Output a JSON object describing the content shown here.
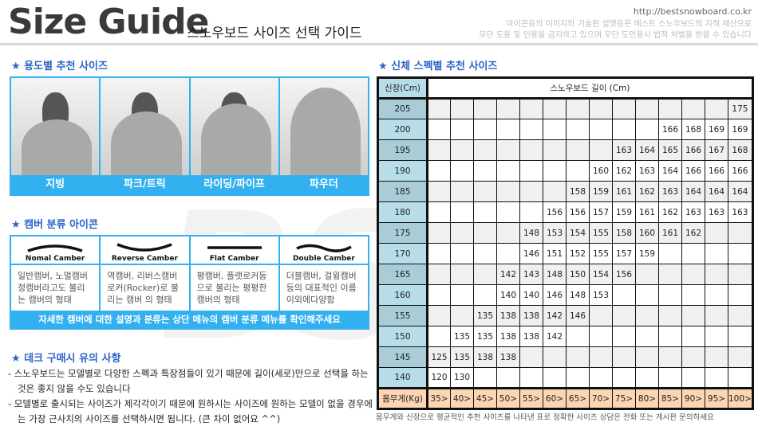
{
  "header": {
    "title": "Size Guide",
    "subtitle": "스노우보드 사이즈 선택 가이드",
    "url": "http://bestsnowboard.co.kr",
    "notice_line1": "아이콘등의 이미지와 기술된 설명등은 베스트 스노우보드의 지적 재산으로",
    "notice_line2": "무단 도용 및 인용을 금지하고 있으며 무단 도인용시 법적 처벌을 받을 수 있습니다"
  },
  "colors": {
    "accent": "#33b0ef",
    "heading": "#2a63c8",
    "height_col": "#b7dde8",
    "weight_row": "#fcd5b4"
  },
  "usage": {
    "heading": "★ 용도별 추천 사이즈",
    "items": [
      {
        "label": "지빙"
      },
      {
        "label": "파크/트릭"
      },
      {
        "label": "라이딩/파이프"
      },
      {
        "label": "파우더"
      }
    ]
  },
  "camber": {
    "heading": "★ 캠버 분류 아이콘",
    "items": [
      {
        "name": "Nomal Camber",
        "desc": "일반캠버, 노멀캠버 정캠버라고도 불리는 캠버의 형태"
      },
      {
        "name": "Reverse Camber",
        "desc": "역캠버, 리버스캠버 로커(Rocker)로 불리는 캠버 의 형태"
      },
      {
        "name": "Flat Camber",
        "desc": "평캠버, 플랫로커등 으로 불리는 평평한 캠버의 형태"
      },
      {
        "name": "Double Camber",
        "desc": "더블캠버, 걸윙캠버 등의 대표적인 이름 이외에다양함"
      }
    ],
    "note": "자세한 캠버에 대한 설명과 분류는 상단 메뉴의 캠버 분류 메뉴를 확인해주세요"
  },
  "deck": {
    "heading": "★ 데크 구매시 유의 사항",
    "notes": [
      "- 스노우보드는 모델별로 다양한 스펙과 특장점들이 있기 때문에 길이(세로)만으로 선택을 하는것은 좋지 않을 수도 있습니다",
      "- 모델별로 출시되는 사이즈가 제각각이기 때문에 원하시는 사이즈에 원하는 모델이 없을 경우에는 가장 근사치의 사이즈를 선택하시면 됩니다. (큰 차이 없어요 ^^)"
    ]
  },
  "size_table": {
    "heading": "★ 신체 스펙별 추천 사이즈",
    "height_header": "신장(Cm)",
    "length_header": "스노우보드 길이 (Cm)",
    "weight_header": "몸무게(Kg)",
    "weights": [
      "35>",
      "40>",
      "45>",
      "50>",
      "55>",
      "60>",
      "65>",
      "70>",
      "75>",
      "80>",
      "85>",
      "90>",
      "95>",
      "100>"
    ],
    "rows": [
      {
        "height": "205",
        "values": [
          "",
          "",
          "",
          "",
          "",
          "",
          "",
          "",
          "",
          "",
          "",
          "",
          "",
          "175"
        ]
      },
      {
        "height": "200",
        "values": [
          "",
          "",
          "",
          "",
          "",
          "",
          "",
          "",
          "",
          "",
          "166",
          "168",
          "169",
          "169"
        ]
      },
      {
        "height": "195",
        "values": [
          "",
          "",
          "",
          "",
          "",
          "",
          "",
          "",
          "163",
          "164",
          "165",
          "166",
          "167",
          "168"
        ]
      },
      {
        "height": "190",
        "values": [
          "",
          "",
          "",
          "",
          "",
          "",
          "",
          "160",
          "162",
          "163",
          "164",
          "166",
          "166",
          "166"
        ]
      },
      {
        "height": "185",
        "values": [
          "",
          "",
          "",
          "",
          "",
          "",
          "158",
          "159",
          "161",
          "162",
          "163",
          "164",
          "164",
          "164"
        ]
      },
      {
        "height": "180",
        "values": [
          "",
          "",
          "",
          "",
          "",
          "156",
          "156",
          "157",
          "159",
          "161",
          "162",
          "163",
          "163",
          "163"
        ]
      },
      {
        "height": "175",
        "values": [
          "",
          "",
          "",
          "",
          "148",
          "153",
          "154",
          "155",
          "158",
          "160",
          "161",
          "162",
          "",
          ""
        ]
      },
      {
        "height": "170",
        "values": [
          "",
          "",
          "",
          "",
          "146",
          "151",
          "152",
          "155",
          "157",
          "159",
          "",
          "",
          "",
          ""
        ]
      },
      {
        "height": "165",
        "values": [
          "",
          "",
          "",
          "142",
          "143",
          "148",
          "150",
          "154",
          "156",
          "",
          "",
          "",
          "",
          ""
        ]
      },
      {
        "height": "160",
        "values": [
          "",
          "",
          "",
          "140",
          "140",
          "146",
          "148",
          "153",
          "",
          "",
          "",
          "",
          "",
          ""
        ]
      },
      {
        "height": "155",
        "values": [
          "",
          "",
          "135",
          "138",
          "138",
          "142",
          "146",
          "",
          "",
          "",
          "",
          "",
          "",
          ""
        ]
      },
      {
        "height": "150",
        "values": [
          "",
          "135",
          "135",
          "138",
          "138",
          "142",
          "",
          "",
          "",
          "",
          "",
          "",
          "",
          ""
        ]
      },
      {
        "height": "145",
        "values": [
          "125",
          "135",
          "138",
          "138",
          "",
          "",
          "",
          "",
          "",
          "",
          "",
          "",
          "",
          ""
        ]
      },
      {
        "height": "140",
        "values": [
          "120",
          "130",
          "",
          "",
          "",
          "",
          "",
          "",
          "",
          "",
          "",
          "",
          "",
          ""
        ]
      }
    ],
    "footnote": "몸무게와 신장으로 평균적인 추천 사이즈를 나타낸 표로 정확한 사이즈 상담은 전화 또는 게시판 문의하세요"
  }
}
